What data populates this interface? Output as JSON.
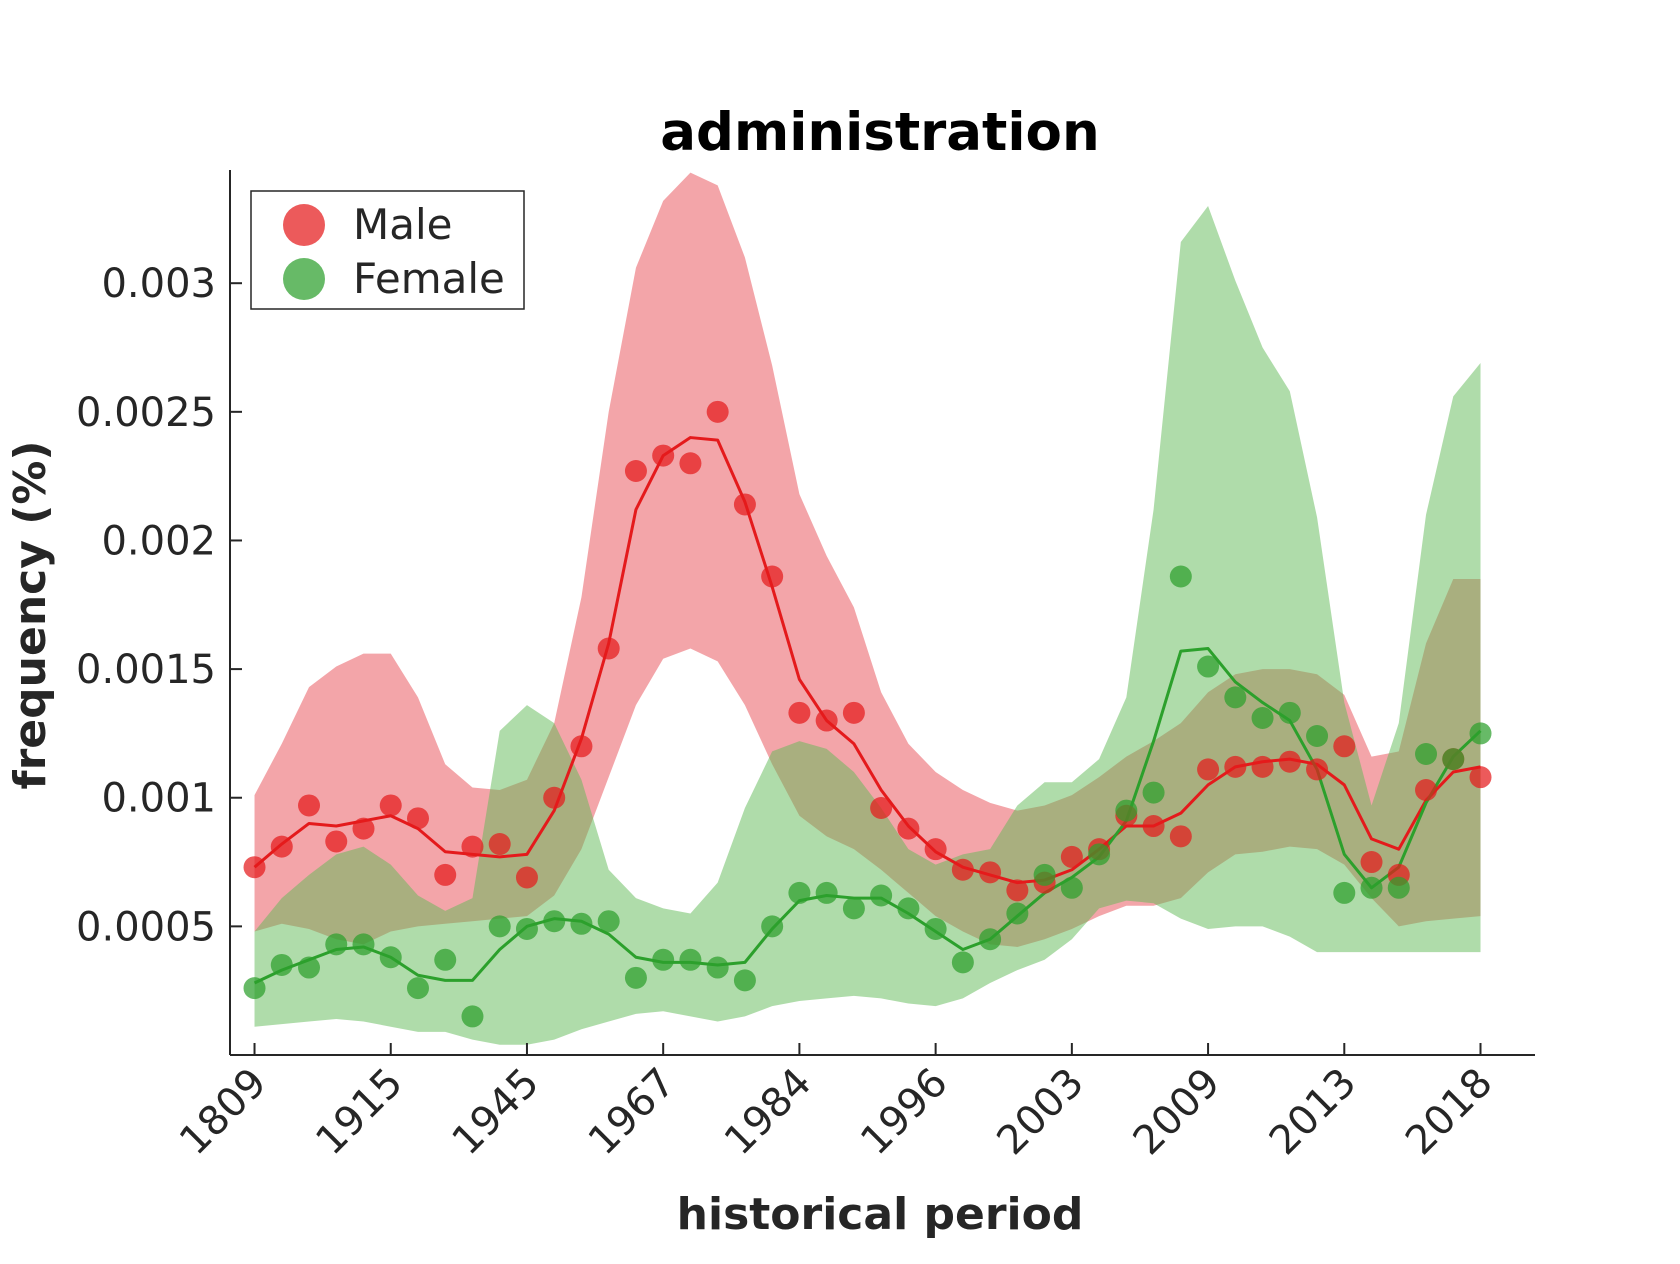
{
  "chart_data": {
    "type": "line",
    "title": "administration",
    "xlabel": "historical period",
    "ylabel": "frequency (%)",
    "x": [
      1,
      2,
      3,
      4,
      5,
      6,
      7,
      8,
      9,
      10,
      11,
      12,
      13,
      14,
      15,
      16,
      17,
      18,
      19,
      20,
      21,
      22,
      23,
      24,
      25,
      26,
      27,
      28,
      29,
      30,
      31,
      32,
      33,
      34,
      35,
      36,
      37,
      38,
      39,
      40,
      41,
      42,
      43,
      44,
      45,
      46
    ],
    "xlim": [
      0.1,
      48
    ],
    "xticks": [
      1,
      6,
      11,
      16,
      21,
      26,
      31,
      36,
      41,
      46
    ],
    "xtick_labels": [
      "1809",
      "1915",
      "1945",
      "1967",
      "1984",
      "1996",
      "2003",
      "2009",
      "2013",
      "2018"
    ],
    "ylim": [
      0,
      0.00344
    ],
    "yticks": [
      0.0005,
      0.001,
      0.0015,
      0.002,
      0.0025,
      0.003
    ],
    "ytick_labels": [
      "0.0005",
      "0.001",
      "0.0015",
      "0.002",
      "0.0025",
      "0.003"
    ],
    "grid": false,
    "legend": {
      "position": "top-left"
    },
    "series": [
      {
        "name": "Male",
        "color": "#e41a1c",
        "points": [
          0.00073,
          0.00081,
          0.00097,
          0.00083,
          0.00088,
          0.00097,
          0.00092,
          0.0007,
          0.00081,
          0.00082,
          0.00069,
          0.001,
          0.0012,
          0.00158,
          0.00227,
          0.00233,
          0.0023,
          0.0025,
          0.00214,
          0.00186,
          0.00133,
          0.0013,
          0.00133,
          0.00096,
          0.00088,
          0.0008,
          0.00072,
          0.00071,
          0.00064,
          0.00067,
          0.00077,
          0.0008,
          0.00093,
          0.00089,
          0.00085,
          0.00111,
          0.00112,
          0.00112,
          0.00114,
          0.00111,
          0.0012,
          0.00075,
          0.0007,
          0.00103,
          0.00115,
          0.00108
        ],
        "trend": [
          0.00073,
          0.00082,
          0.0009,
          0.00089,
          0.00091,
          0.00093,
          0.00088,
          0.00079,
          0.00078,
          0.00077,
          0.00078,
          0.00095,
          0.00123,
          0.0016,
          0.00212,
          0.00233,
          0.0024,
          0.00239,
          0.00215,
          0.00182,
          0.00146,
          0.0013,
          0.00121,
          0.00103,
          0.00089,
          0.00079,
          0.00073,
          0.0007,
          0.00067,
          0.00068,
          0.00072,
          0.0008,
          0.00089,
          0.00089,
          0.00094,
          0.00105,
          0.00112,
          0.00114,
          0.00115,
          0.00113,
          0.00105,
          0.00084,
          0.0008,
          0.00099,
          0.0011,
          0.00112
        ],
        "band_upper": [
          0.00101,
          0.00121,
          0.00143,
          0.00151,
          0.00156,
          0.00156,
          0.00139,
          0.00113,
          0.00104,
          0.00103,
          0.00107,
          0.00129,
          0.00178,
          0.0025,
          0.00306,
          0.00332,
          0.00343,
          0.00338,
          0.0031,
          0.00268,
          0.00218,
          0.00194,
          0.00174,
          0.00141,
          0.00121,
          0.0011,
          0.00103,
          0.00098,
          0.00095,
          0.00097,
          0.00101,
          0.00108,
          0.00116,
          0.00122,
          0.00129,
          0.00141,
          0.00148,
          0.0015,
          0.0015,
          0.00148,
          0.0014,
          0.00116,
          0.00118,
          0.0016,
          0.00185,
          0.00185
        ],
        "band_lower": [
          0.00048,
          0.00051,
          0.00049,
          0.00045,
          0.00043,
          0.00048,
          0.0005,
          0.00051,
          0.00052,
          0.00053,
          0.00054,
          0.00062,
          0.0008,
          0.00108,
          0.00136,
          0.00154,
          0.00158,
          0.00153,
          0.00136,
          0.00113,
          0.00093,
          0.00085,
          0.0008,
          0.00072,
          0.00063,
          0.00054,
          0.00048,
          0.00043,
          0.00042,
          0.00045,
          0.00049,
          0.00054,
          0.00058,
          0.00058,
          0.00061,
          0.00071,
          0.00078,
          0.00079,
          0.00081,
          0.0008,
          0.00074,
          0.00061,
          0.0005,
          0.00052,
          0.00053,
          0.00054
        ]
      },
      {
        "name": "Female",
        "color": "#2ca02c",
        "points": [
          0.00026,
          0.00035,
          0.00034,
          0.00043,
          0.00043,
          0.00038,
          0.00026,
          0.00037,
          0.00015,
          0.0005,
          0.00049,
          0.00052,
          0.00051,
          0.00052,
          0.0003,
          0.00037,
          0.00037,
          0.00034,
          0.00029,
          0.0005,
          0.00063,
          0.00063,
          0.00057,
          0.00062,
          0.00057,
          0.00049,
          0.00036,
          0.00045,
          0.00055,
          0.0007,
          0.00065,
          0.00078,
          0.00095,
          0.00102,
          0.00186,
          0.00151,
          0.00139,
          0.00131,
          0.00133,
          0.00124,
          0.00063,
          0.00065,
          0.00065,
          0.00117,
          0.00115,
          0.00125
        ],
        "trend": [
          0.00028,
          0.00033,
          0.00037,
          0.00041,
          0.00042,
          0.00038,
          0.00031,
          0.00029,
          0.00029,
          0.00041,
          0.0005,
          0.00053,
          0.00052,
          0.00047,
          0.00038,
          0.00036,
          0.00036,
          0.00035,
          0.00036,
          0.00049,
          0.0006,
          0.00062,
          0.00061,
          0.00061,
          0.00055,
          0.00048,
          0.00041,
          0.00045,
          0.00054,
          0.00063,
          0.00069,
          0.00077,
          0.00091,
          0.00122,
          0.00157,
          0.00158,
          0.00145,
          0.00137,
          0.0013,
          0.00111,
          0.00078,
          0.00065,
          0.00073,
          0.00098,
          0.00116,
          0.00126
        ],
        "band_upper": [
          0.00048,
          0.00061,
          0.0007,
          0.00078,
          0.00081,
          0.00074,
          0.00062,
          0.00056,
          0.00061,
          0.00126,
          0.00136,
          0.00129,
          0.00107,
          0.00072,
          0.00061,
          0.00057,
          0.00055,
          0.00067,
          0.00096,
          0.00118,
          0.00122,
          0.00119,
          0.0011,
          0.00096,
          0.0008,
          0.00074,
          0.00078,
          0.0008,
          0.00097,
          0.00106,
          0.00106,
          0.00115,
          0.00139,
          0.00212,
          0.00316,
          0.0033,
          0.00301,
          0.00275,
          0.00258,
          0.00209,
          0.00137,
          0.00097,
          0.00129,
          0.0021,
          0.00256,
          0.00269
        ],
        "band_lower": [
          0.00011,
          0.00012,
          0.00013,
          0.00014,
          0.00013,
          0.00011,
          9e-05,
          9e-05,
          6e-05,
          4e-05,
          4e-05,
          6e-05,
          0.0001,
          0.00013,
          0.00016,
          0.00017,
          0.00015,
          0.00013,
          0.00015,
          0.00019,
          0.00021,
          0.00022,
          0.00023,
          0.00022,
          0.0002,
          0.00019,
          0.00022,
          0.00028,
          0.00033,
          0.00037,
          0.00045,
          0.00057,
          0.0006,
          0.00059,
          0.00053,
          0.00049,
          0.0005,
          0.0005,
          0.00046,
          0.0004,
          0.0004,
          0.0004,
          0.0004,
          0.0004,
          0.0004,
          0.0004
        ]
      }
    ]
  }
}
